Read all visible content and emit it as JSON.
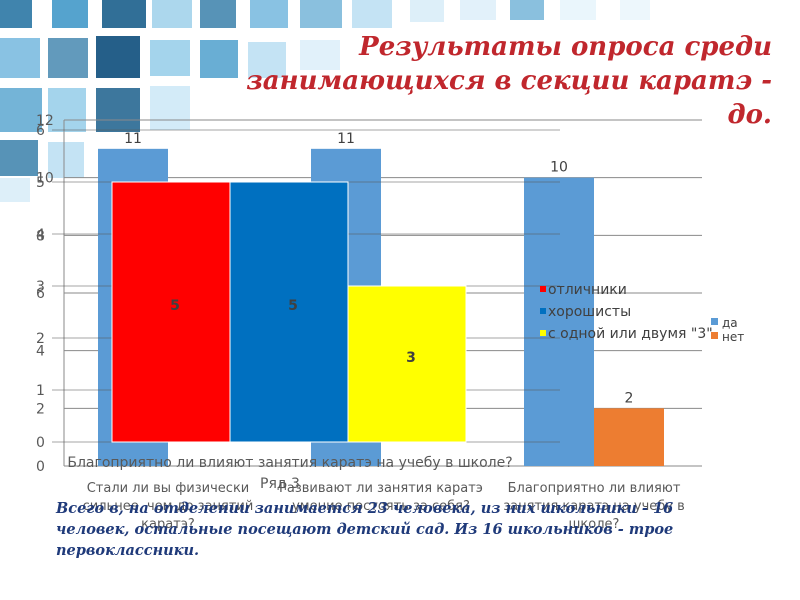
{
  "slide": {
    "title": "Результаты опроса среди занимающихся в секции каратэ - до.",
    "footnote": "Всего в, на отделении занимается 23 человека, из них школьники - 16 человек, остальные посещают детский сад. Из 16 школьников - трое первоклассники."
  },
  "chart_data": [
    {
      "type": "bar",
      "categories": [
        "Стали ли вы физически сильнее, чем до занятий каратэ?",
        "Развивают ли занятия каратэ умение постоять за себя?",
        "Благоприятно ли влияют занятия каратэ на учебу в школе?"
      ],
      "series": [
        {
          "name": "да",
          "values": [
            11,
            11,
            10
          ],
          "color": "#5b9bd5"
        },
        {
          "name": "нет",
          "values": [
            0,
            0,
            2
          ],
          "color": "#ed7d31"
        }
      ],
      "data_labels": [
        "11",
        "11",
        "10",
        "2"
      ],
      "ylim": [
        0,
        12
      ],
      "y_ticks": [
        "0",
        "2",
        "4",
        "6",
        "8",
        "10",
        "12"
      ],
      "legend_position": "right",
      "grid": true
    },
    {
      "type": "bar",
      "title": "Благоприятно ли влияют занятия каратэ на учебу в школе?",
      "categories": [
        "Ряд 3"
      ],
      "series": [
        {
          "name": "отличники",
          "values": [
            5
          ],
          "color": "#ff0000"
        },
        {
          "name": "хорошисты",
          "values": [
            5
          ],
          "color": "#0070c0"
        },
        {
          "name": "с одной или двумя \"3\"",
          "values": [
            3
          ],
          "color": "#ffff00"
        }
      ],
      "data_labels": [
        "5",
        "5",
        "3"
      ],
      "ylim": [
        0,
        6
      ],
      "y_ticks": [
        "0",
        "1",
        "2",
        "3",
        "4",
        "5",
        "6"
      ],
      "legend_position": "right",
      "grid": true
    }
  ]
}
